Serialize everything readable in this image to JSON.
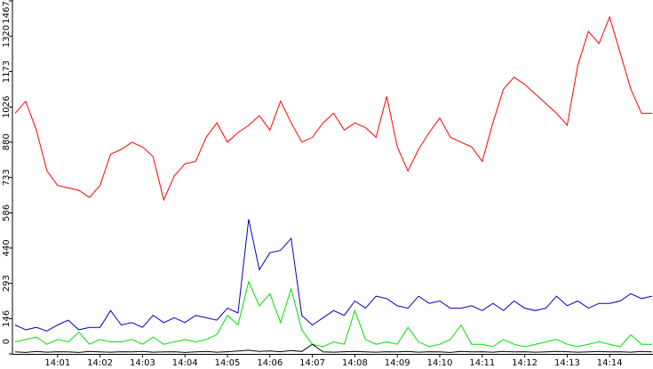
{
  "chart_data": {
    "type": "line",
    "x": [
      0,
      0.25,
      0.5,
      0.75,
      1,
      1.25,
      1.5,
      1.75,
      2,
      2.25,
      2.5,
      2.75,
      3,
      3.25,
      3.5,
      3.75,
      4,
      4.25,
      4.5,
      4.75,
      5,
      5.25,
      5.5,
      5.75,
      6,
      6.25,
      6.5,
      6.75,
      7,
      7.25,
      7.5,
      7.75,
      8,
      8.25,
      8.5,
      8.75,
      9,
      9.25,
      9.5,
      9.75,
      10,
      10.25,
      10.5,
      10.75,
      11,
      11.25,
      11.5,
      11.75,
      12,
      12.25,
      12.5,
      12.75,
      13,
      13.25,
      13.5,
      13.75,
      14,
      14.25,
      14.5,
      14.75,
      15
    ],
    "series": [
      {
        "color": "#ff0000",
        "values": [
          1000,
          1050,
          930,
          760,
          700,
          690,
          680,
          650,
          700,
          830,
          850,
          880,
          860,
          820,
          640,
          740,
          790,
          800,
          900,
          960,
          880,
          920,
          950,
          990,
          930,
          1050,
          960,
          880,
          900,
          960,
          1000,
          930,
          960,
          940,
          900,
          1070,
          860,
          760,
          850,
          920,
          980,
          900,
          880,
          860,
          800,
          960,
          1100,
          1150,
          1120,
          1080,
          1040,
          1000,
          950,
          1200,
          1340,
          1290,
          1400,
          1250,
          1100,
          1000,
          1000
        ]
      },
      {
        "color": "#0000c0",
        "values": [
          120,
          100,
          110,
          95,
          120,
          140,
          100,
          110,
          110,
          180,
          120,
          130,
          110,
          160,
          130,
          150,
          130,
          160,
          150,
          140,
          190,
          170,
          560,
          350,
          420,
          430,
          480,
          160,
          120,
          150,
          180,
          160,
          220,
          190,
          240,
          230,
          200,
          190,
          240,
          210,
          220,
          190,
          190,
          200,
          180,
          210,
          180,
          220,
          190,
          180,
          190,
          240,
          200,
          220,
          190,
          210,
          210,
          220,
          250,
          230,
          240
        ]
      },
      {
        "color": "#00e000",
        "values": [
          50,
          60,
          70,
          40,
          60,
          50,
          90,
          40,
          60,
          50,
          50,
          60,
          40,
          70,
          40,
          50,
          60,
          50,
          60,
          80,
          160,
          120,
          300,
          200,
          250,
          130,
          270,
          100,
          40,
          30,
          50,
          40,
          180,
          60,
          40,
          50,
          40,
          110,
          50,
          30,
          40,
          60,
          120,
          40,
          40,
          30,
          60,
          40,
          30,
          40,
          50,
          60,
          40,
          30,
          40,
          50,
          40,
          30,
          80,
          40,
          40
        ]
      },
      {
        "color": "#000000",
        "values": [
          8,
          6,
          10,
          7,
          9,
          8,
          6,
          10,
          8,
          7,
          9,
          8,
          10,
          7,
          8,
          9,
          6,
          8,
          10,
          7,
          9,
          12,
          15,
          10,
          12,
          9,
          14,
          10,
          40,
          8,
          7,
          9,
          10,
          8,
          7,
          9,
          8,
          10,
          7,
          9,
          8,
          6,
          10,
          8,
          9,
          7,
          10,
          8,
          9,
          7,
          8,
          10,
          9,
          7,
          8,
          10,
          8,
          9,
          7,
          10,
          8
        ]
      }
    ],
    "xlim": [
      0,
      15
    ],
    "xticks": [
      {
        "value": 1,
        "label": "14:01"
      },
      {
        "value": 2,
        "label": "14:02"
      },
      {
        "value": 3,
        "label": "14:03"
      },
      {
        "value": 4,
        "label": "14:04"
      },
      {
        "value": 5,
        "label": "14:05"
      },
      {
        "value": 6,
        "label": "14:06"
      },
      {
        "value": 7,
        "label": "14:07"
      },
      {
        "value": 8,
        "label": "14:08"
      },
      {
        "value": 9,
        "label": "14:09"
      },
      {
        "value": 10,
        "label": "14:10"
      },
      {
        "value": 11,
        "label": "14:11"
      },
      {
        "value": 12,
        "label": "14:12"
      },
      {
        "value": 13,
        "label": "14:13"
      },
      {
        "value": 14,
        "label": "14:14"
      }
    ],
    "ylim": [
      0,
      1467
    ],
    "yticks": [
      0,
      146,
      293,
      440,
      586,
      733,
      880,
      1026,
      1173,
      1320,
      1467
    ]
  }
}
